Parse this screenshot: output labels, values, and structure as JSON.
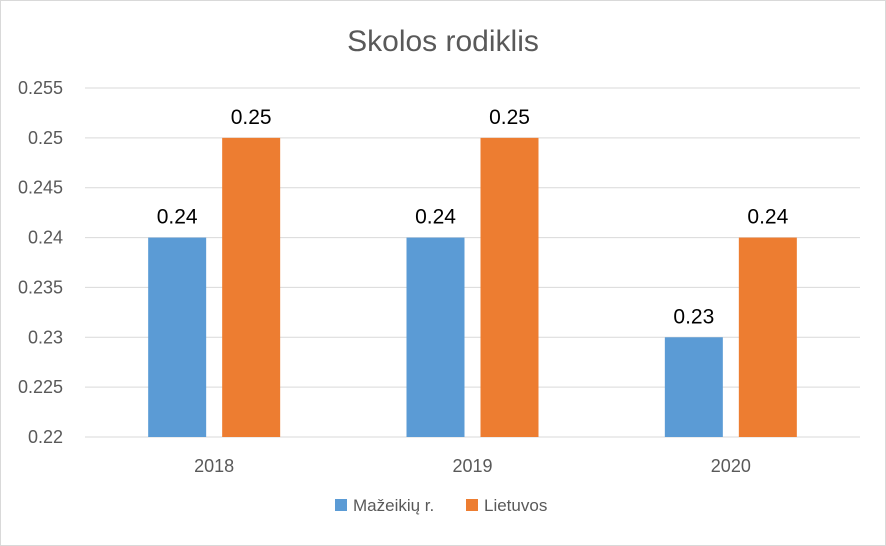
{
  "chart_data": {
    "type": "bar",
    "title": "Skolos rodiklis",
    "xlabel": "",
    "ylabel": "",
    "categories": [
      "2018",
      "2019",
      "2020"
    ],
    "series": [
      {
        "name": "Mažeikių r.",
        "values": [
          0.24,
          0.24,
          0.23
        ],
        "labels": [
          "0.24",
          "0.24",
          "0.23"
        ],
        "color": "#5b9bd5"
      },
      {
        "name": "Lietuvos",
        "values": [
          0.25,
          0.25,
          0.24
        ],
        "labels": [
          "0.25",
          "0.25",
          "0.24"
        ],
        "color": "#ed7d31"
      }
    ],
    "ylim": [
      0.22,
      0.255
    ],
    "yticks": [
      "0.22",
      "0.225",
      "0.23",
      "0.235",
      "0.24",
      "0.245",
      "0.25",
      "0.255"
    ],
    "grid": true,
    "gridColor": "#d9d9d9",
    "legend": "bottom"
  }
}
